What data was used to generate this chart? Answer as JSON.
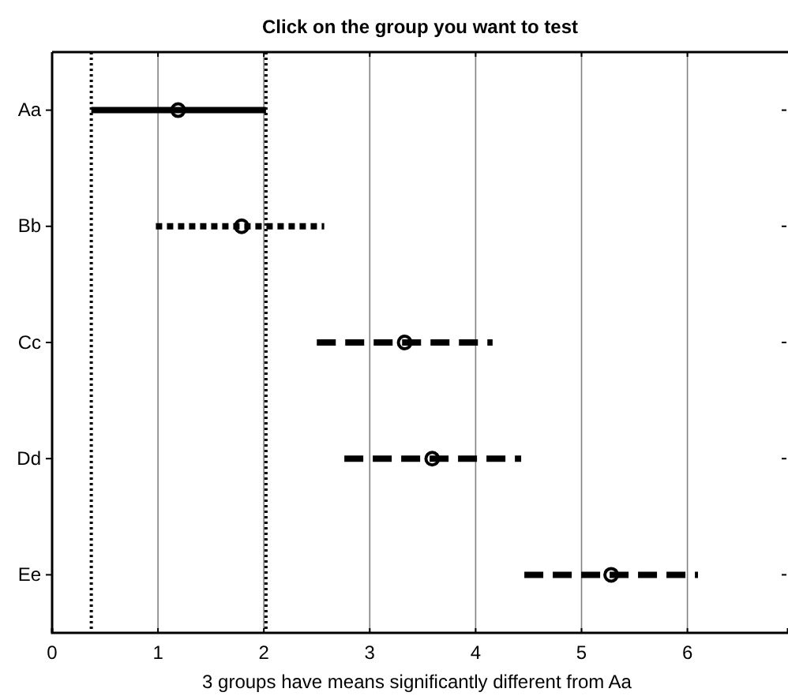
{
  "chart_data": {
    "type": "scatter",
    "orientation": "horizontal",
    "title": "Click on the group you want to test",
    "xlabel": "3 groups have means significantly different from Aa",
    "categories": [
      "Aa",
      "Bb",
      "Cc",
      "Dd",
      "Ee"
    ],
    "series": [
      {
        "color": "#000000",
        "line_style": "solid",
        "values": [
          1.19,
          null,
          null,
          null,
          null
        ],
        "errors": [
          [
            0.37,
            2.02
          ],
          null,
          null,
          null,
          null
        ]
      },
      {
        "color": "#000000",
        "line_style": "dotted",
        "values": [
          null,
          1.79,
          null,
          null,
          null
        ],
        "errors": [
          null,
          [
            0.98,
            2.57
          ],
          null,
          null,
          null
        ]
      },
      {
        "color": "#000000",
        "line_style": "dashed",
        "values": [
          null,
          null,
          3.33,
          3.59,
          5.28
        ],
        "errors": [
          null,
          null,
          [
            2.5,
            4.16
          ],
          [
            2.76,
            4.43
          ],
          [
            4.46,
            6.1
          ]
        ]
      }
    ],
    "xlim": [
      0,
      6.95
    ],
    "xticks": [
      0,
      1,
      2,
      3,
      4,
      5,
      6
    ],
    "grid": "x",
    "marker": "circle",
    "ref_lines": [
      {
        "axis": "x",
        "value": 0.37,
        "color": "#000000",
        "line_style": "dotted"
      },
      {
        "axis": "x",
        "value": 2.02,
        "color": "#000000",
        "line_style": "dotted"
      }
    ]
  }
}
